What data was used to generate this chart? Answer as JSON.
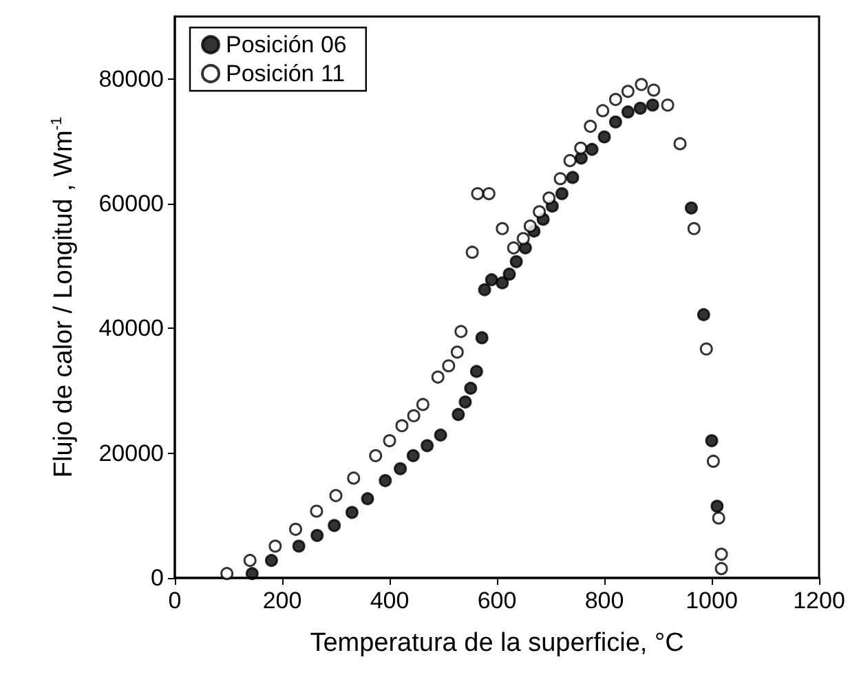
{
  "chart_data": {
    "type": "scatter",
    "xlabel": "Temperatura de la superficie, °C",
    "ylabel": "Flujo de calor / Longitud , Wm$^{-1}$",
    "xlim": [
      0,
      1200
    ],
    "xticks": [
      0,
      200,
      400,
      600,
      800,
      1000,
      1200
    ],
    "ylim": [
      0,
      90000
    ],
    "yticks": [
      0,
      20000,
      40000,
      60000,
      80000
    ],
    "grid": false,
    "legend": "top left",
    "series": [
      {
        "name": "Posición 06",
        "color": "#000000",
        "marker": "circle",
        "x": [
          144,
          180,
          231,
          265,
          297,
          330,
          359,
          392,
          420,
          444,
          470,
          495,
          528,
          541,
          551,
          562,
          572,
          577,
          590,
          610,
          623,
          636,
          653,
          669,
          686,
          703,
          721,
          741,
          757,
          777,
          800,
          821,
          844,
          867,
          890,
          962,
          985,
          1000,
          1010
        ],
        "values": [
          700,
          2800,
          5100,
          6800,
          8400,
          10500,
          12700,
          15600,
          17500,
          19600,
          21200,
          22900,
          26200,
          28200,
          30400,
          33100,
          38500,
          46200,
          47800,
          47300,
          48700,
          50700,
          52900,
          55600,
          57500,
          59600,
          61600,
          64200,
          67300,
          68700,
          70700,
          73100,
          74700,
          75300,
          75800,
          59300,
          42200,
          22000,
          11500
        ]
      },
      {
        "name": "Posición 11",
        "color": "#000000",
        "marker": "open-circle",
        "x": [
          97,
          140,
          187,
          225,
          264,
          300,
          333,
          374,
          400,
          423,
          445,
          462,
          490,
          510,
          526,
          533,
          554,
          564,
          585,
          610,
          631,
          649,
          662,
          679,
          697,
          718,
          736,
          756,
          774,
          797,
          821,
          844,
          869,
          892,
          918,
          941,
          967,
          990,
          1003,
          1013,
          1018,
          1018
        ],
        "values": [
          700,
          2800,
          5100,
          7800,
          10700,
          13200,
          16000,
          19600,
          22000,
          24400,
          26000,
          27800,
          32200,
          34000,
          36200,
          39500,
          52200,
          61600,
          61600,
          56000,
          52900,
          54400,
          56400,
          58700,
          60900,
          64000,
          66900,
          68900,
          72400,
          74900,
          76700,
          78000,
          79100,
          78200,
          75800,
          69600,
          56000,
          36700,
          18700,
          9600,
          3800,
          1500
        ]
      }
    ]
  }
}
